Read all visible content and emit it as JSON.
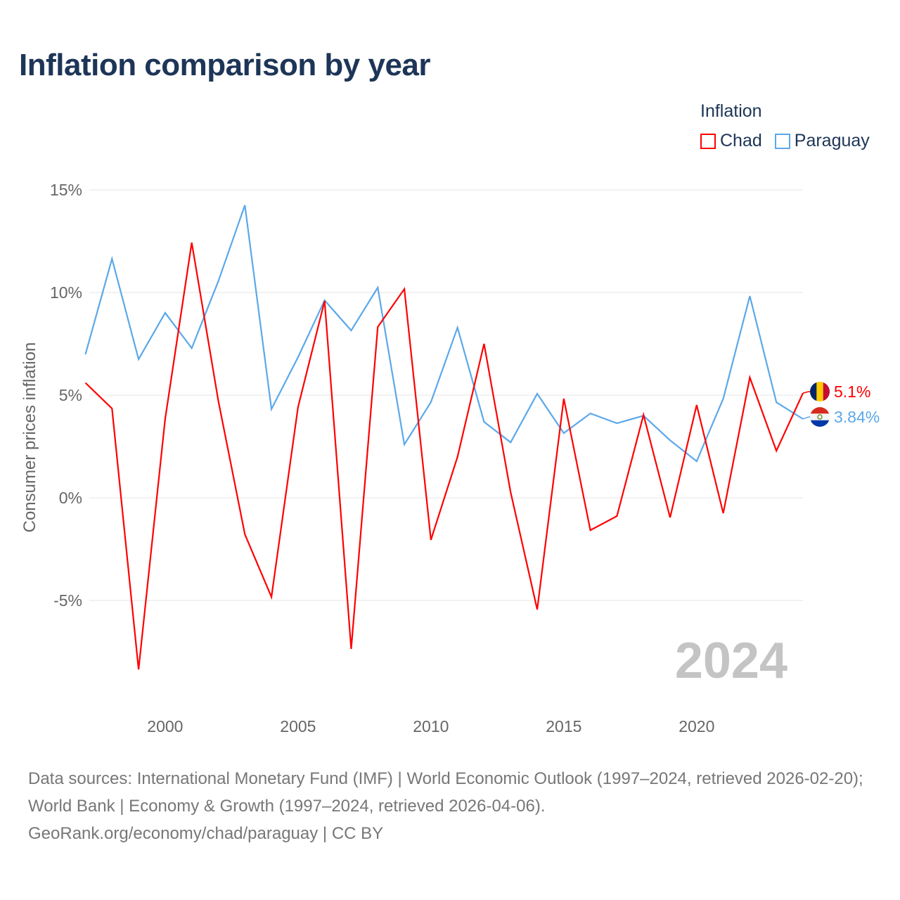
{
  "title": "Inflation comparison by year",
  "legend": {
    "title": "Inflation",
    "items": [
      {
        "name": "Chad",
        "color": "#ff0000"
      },
      {
        "name": "Paraguay",
        "color": "#5ba8ea"
      }
    ]
  },
  "source": {
    "line1": "Data sources: International Monetary Fund (IMF) | World Economic Outlook (1997–2024, retrieved 2026-02-20); World Bank | Economy & Growth (1997–2024, retrieved 2026-04-06).",
    "line2": "GeoRank.org/economy/chad/paraguay | CC BY"
  },
  "chart_data": {
    "type": "line",
    "title": "Inflation comparison by year",
    "xlabel": "",
    "ylabel": "Consumer prices inflation",
    "year_label": "2024",
    "x": [
      1997,
      1998,
      1999,
      2000,
      2001,
      2002,
      2003,
      2004,
      2005,
      2006,
      2007,
      2008,
      2009,
      2010,
      2011,
      2012,
      2013,
      2014,
      2015,
      2016,
      2017,
      2018,
      2019,
      2020,
      2021,
      2022,
      2023,
      2024
    ],
    "xlim": [
      1997,
      2024
    ],
    "ylim": [
      -8.5,
      15
    ],
    "xticks": [
      2000,
      2005,
      2010,
      2015,
      2020
    ],
    "yticks": [
      {
        "v": 15,
        "label": "15%"
      },
      {
        "v": 10,
        "label": "10%"
      },
      {
        "v": 5,
        "label": "5%"
      },
      {
        "v": 0,
        "label": "0%"
      },
      {
        "v": -5,
        "label": "-5%"
      }
    ],
    "grid": true,
    "legend_position": "top-right",
    "series": [
      {
        "name": "Chad",
        "color": "#ff0000",
        "end_label": "5.1%",
        "values": [
          5.6,
          4.35,
          -8.36,
          3.84,
          12.43,
          4.73,
          -1.78,
          -4.83,
          4.42,
          9.59,
          -7.36,
          8.32,
          10.17,
          -2.05,
          1.99,
          7.5,
          0.27,
          -5.44,
          4.83,
          -1.58,
          -0.89,
          4.04,
          -0.96,
          4.52,
          -0.75,
          5.86,
          2.29,
          5.1
        ]
      },
      {
        "name": "Paraguay",
        "color": "#5ba8ea",
        "end_label": "3.84%",
        "values": [
          6.99,
          11.64,
          6.75,
          9.01,
          7.29,
          10.55,
          14.25,
          4.32,
          6.85,
          9.62,
          8.15,
          10.24,
          2.6,
          4.66,
          8.29,
          3.7,
          2.7,
          5.07,
          3.15,
          4.11,
          3.63,
          4.0,
          2.8,
          1.78,
          4.83,
          9.83,
          4.65,
          3.84
        ]
      }
    ]
  }
}
